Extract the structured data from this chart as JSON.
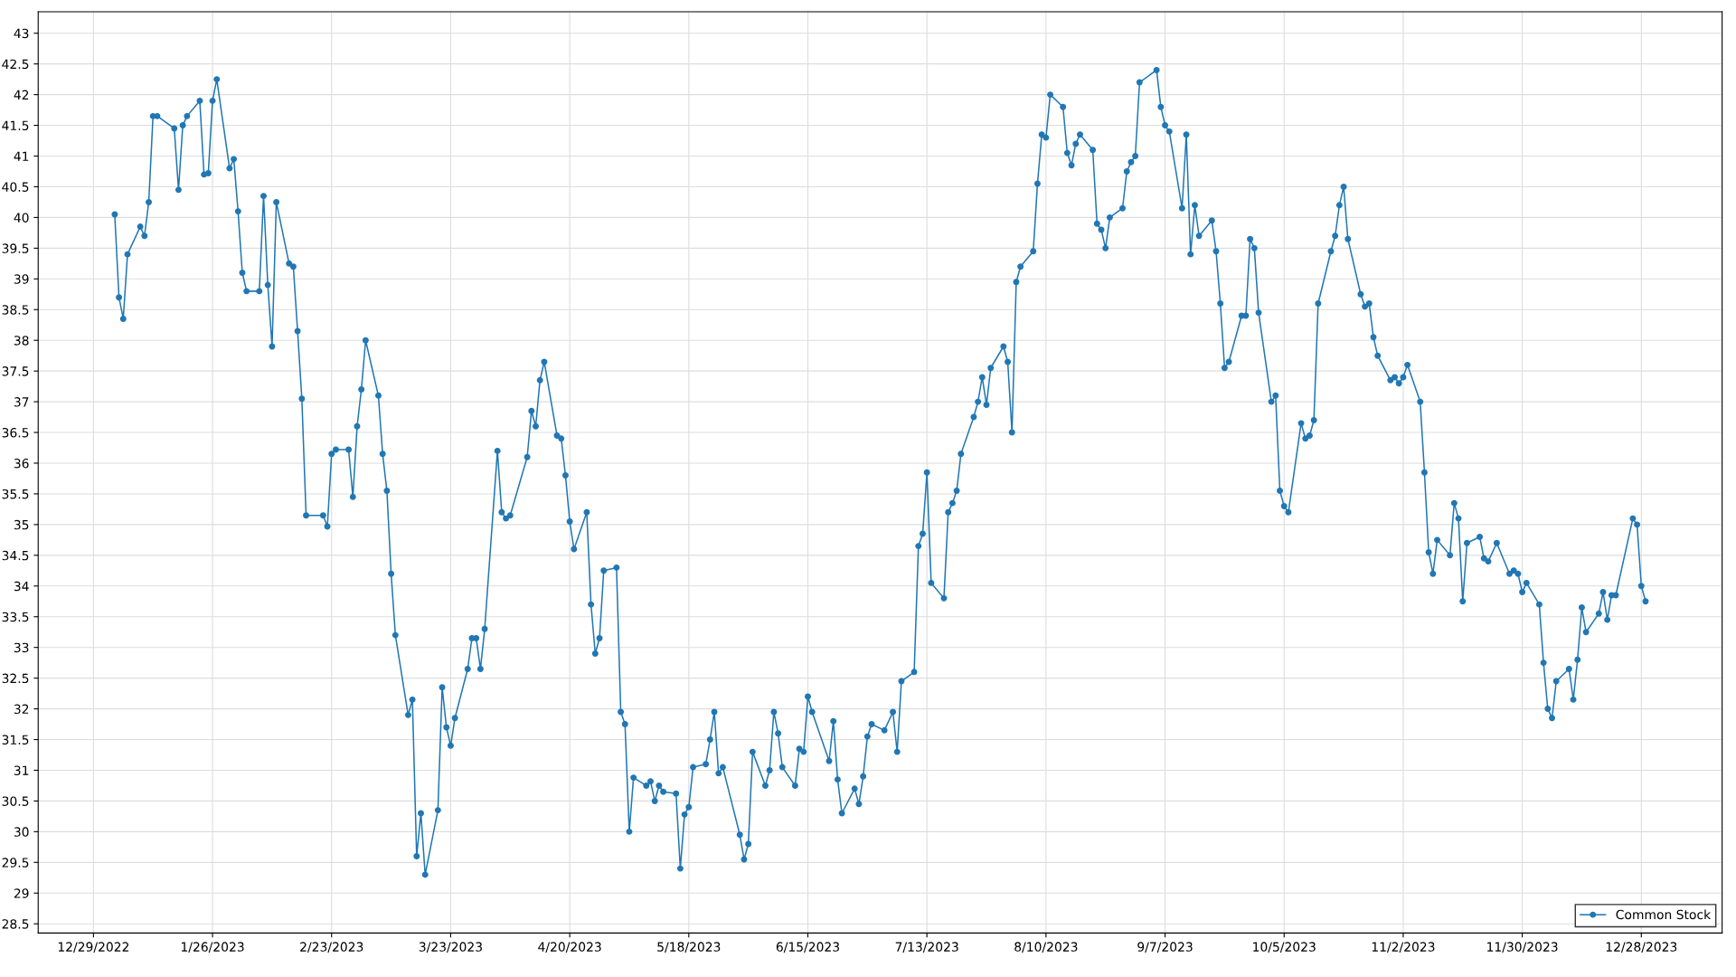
{
  "chart_data": {
    "type": "line",
    "x": [
      "2023-01-03",
      "2023-01-04",
      "2023-01-05",
      "2023-01-06",
      "2023-01-09",
      "2023-01-10",
      "2023-01-11",
      "2023-01-12",
      "2023-01-13",
      "2023-01-17",
      "2023-01-18",
      "2023-01-19",
      "2023-01-20",
      "2023-01-23",
      "2023-01-24",
      "2023-01-25",
      "2023-01-26",
      "2023-01-27",
      "2023-01-30",
      "2023-01-31",
      "2023-02-01",
      "2023-02-02",
      "2023-02-03",
      "2023-02-06",
      "2023-02-07",
      "2023-02-08",
      "2023-02-09",
      "2023-02-10",
      "2023-02-13",
      "2023-02-14",
      "2023-02-15",
      "2023-02-16",
      "2023-02-17",
      "2023-02-21",
      "2023-02-22",
      "2023-02-23",
      "2023-02-24",
      "2023-02-27",
      "2023-02-28",
      "2023-03-01",
      "2023-03-02",
      "2023-03-03",
      "2023-03-06",
      "2023-03-07",
      "2023-03-08",
      "2023-03-09",
      "2023-03-10",
      "2023-03-13",
      "2023-03-14",
      "2023-03-15",
      "2023-03-16",
      "2023-03-17",
      "2023-03-20",
      "2023-03-21",
      "2023-03-22",
      "2023-03-23",
      "2023-03-24",
      "2023-03-27",
      "2023-03-28",
      "2023-03-29",
      "2023-03-30",
      "2023-03-31",
      "2023-04-03",
      "2023-04-04",
      "2023-04-05",
      "2023-04-06",
      "2023-04-10",
      "2023-04-11",
      "2023-04-12",
      "2023-04-13",
      "2023-04-14",
      "2023-04-17",
      "2023-04-18",
      "2023-04-19",
      "2023-04-20",
      "2023-04-21",
      "2023-04-24",
      "2023-04-25",
      "2023-04-26",
      "2023-04-27",
      "2023-04-28",
      "2023-05-01",
      "2023-05-02",
      "2023-05-03",
      "2023-05-04",
      "2023-05-05",
      "2023-05-08",
      "2023-05-09",
      "2023-05-10",
      "2023-05-11",
      "2023-05-12",
      "2023-05-15",
      "2023-05-16",
      "2023-05-17",
      "2023-05-18",
      "2023-05-19",
      "2023-05-22",
      "2023-05-23",
      "2023-05-24",
      "2023-05-25",
      "2023-05-26",
      "2023-05-30",
      "2023-05-31",
      "2023-06-01",
      "2023-06-02",
      "2023-06-05",
      "2023-06-06",
      "2023-06-07",
      "2023-06-08",
      "2023-06-09",
      "2023-06-12",
      "2023-06-13",
      "2023-06-14",
      "2023-06-15",
      "2023-06-16",
      "2023-06-20",
      "2023-06-21",
      "2023-06-22",
      "2023-06-23",
      "2023-06-26",
      "2023-06-27",
      "2023-06-28",
      "2023-06-29",
      "2023-06-30",
      "2023-07-03",
      "2023-07-05",
      "2023-07-06",
      "2023-07-07",
      "2023-07-10",
      "2023-07-11",
      "2023-07-12",
      "2023-07-13",
      "2023-07-14",
      "2023-07-17",
      "2023-07-18",
      "2023-07-19",
      "2023-07-20",
      "2023-07-21",
      "2023-07-24",
      "2023-07-25",
      "2023-07-26",
      "2023-07-27",
      "2023-07-28",
      "2023-07-31",
      "2023-08-01",
      "2023-08-02",
      "2023-08-03",
      "2023-08-04",
      "2023-08-07",
      "2023-08-08",
      "2023-08-09",
      "2023-08-10",
      "2023-08-11",
      "2023-08-14",
      "2023-08-15",
      "2023-08-16",
      "2023-08-17",
      "2023-08-18",
      "2023-08-21",
      "2023-08-22",
      "2023-08-23",
      "2023-08-24",
      "2023-08-25",
      "2023-08-28",
      "2023-08-29",
      "2023-08-30",
      "2023-08-31",
      "2023-09-01",
      "2023-09-05",
      "2023-09-06",
      "2023-09-07",
      "2023-09-08",
      "2023-09-11",
      "2023-09-12",
      "2023-09-13",
      "2023-09-14",
      "2023-09-15",
      "2023-09-18",
      "2023-09-19",
      "2023-09-20",
      "2023-09-21",
      "2023-09-22",
      "2023-09-25",
      "2023-09-26",
      "2023-09-27",
      "2023-09-28",
      "2023-09-29",
      "2023-10-02",
      "2023-10-03",
      "2023-10-04",
      "2023-10-05",
      "2023-10-06",
      "2023-10-09",
      "2023-10-10",
      "2023-10-11",
      "2023-10-12",
      "2023-10-13",
      "2023-10-16",
      "2023-10-17",
      "2023-10-18",
      "2023-10-19",
      "2023-10-20",
      "2023-10-23",
      "2023-10-24",
      "2023-10-25",
      "2023-10-26",
      "2023-10-27",
      "2023-10-30",
      "2023-10-31",
      "2023-11-01",
      "2023-11-02",
      "2023-11-03",
      "2023-11-06",
      "2023-11-07",
      "2023-11-08",
      "2023-11-09",
      "2023-11-10",
      "2023-11-13",
      "2023-11-14",
      "2023-11-15",
      "2023-11-16",
      "2023-11-17",
      "2023-11-20",
      "2023-11-21",
      "2023-11-22",
      "2023-11-24",
      "2023-11-27",
      "2023-11-28",
      "2023-11-29",
      "2023-11-30",
      "2023-12-01",
      "2023-12-04",
      "2023-12-05",
      "2023-12-06",
      "2023-12-07",
      "2023-12-08",
      "2023-12-11",
      "2023-12-12",
      "2023-12-13",
      "2023-12-14",
      "2023-12-15",
      "2023-12-18",
      "2023-12-19",
      "2023-12-20",
      "2023-12-21",
      "2023-12-22",
      "2023-12-26",
      "2023-12-27",
      "2023-12-28",
      "2023-12-29"
    ],
    "series": [
      {
        "name": "Common Stock",
        "color": "#2077b4",
        "values": [
          40.05,
          38.7,
          38.35,
          39.4,
          39.85,
          39.7,
          40.25,
          41.65,
          41.65,
          41.45,
          40.45,
          41.5,
          41.65,
          41.9,
          40.7,
          40.72,
          41.9,
          42.25,
          40.8,
          40.95,
          40.1,
          39.1,
          38.8,
          38.8,
          40.35,
          38.9,
          37.9,
          40.25,
          39.25,
          39.2,
          38.15,
          37.05,
          35.15,
          35.15,
          34.97,
          36.15,
          36.22,
          36.22,
          35.45,
          36.6,
          37.2,
          38.0,
          37.1,
          36.15,
          35.55,
          34.2,
          33.2,
          31.9,
          32.15,
          29.6,
          30.3,
          29.3,
          30.35,
          32.35,
          31.7,
          31.4,
          31.85,
          32.65,
          33.15,
          33.15,
          32.65,
          33.3,
          36.2,
          35.2,
          35.1,
          35.15,
          36.1,
          36.85,
          36.6,
          37.35,
          37.65,
          36.45,
          36.4,
          35.8,
          35.05,
          34.6,
          35.2,
          33.7,
          32.9,
          33.15,
          34.25,
          34.3,
          31.95,
          31.75,
          30.0,
          30.88,
          30.75,
          30.82,
          30.5,
          30.75,
          30.65,
          30.62,
          29.4,
          30.28,
          30.4,
          31.05,
          31.1,
          31.5,
          31.95,
          30.95,
          31.05,
          29.95,
          29.55,
          29.8,
          31.3,
          30.75,
          31.0,
          31.95,
          31.6,
          31.05,
          30.75,
          31.35,
          31.3,
          32.2,
          31.95,
          31.15,
          31.8,
          30.85,
          30.3,
          30.7,
          30.45,
          30.9,
          31.55,
          31.75,
          31.65,
          31.95,
          31.3,
          32.45,
          32.6,
          34.65,
          34.85,
          35.85,
          34.05,
          33.8,
          35.2,
          35.35,
          35.55,
          36.15,
          36.75,
          37.0,
          37.4,
          36.95,
          37.55,
          37.9,
          37.65,
          36.5,
          38.95,
          39.2,
          39.45,
          40.55,
          41.35,
          41.3,
          42.0,
          41.8,
          41.05,
          40.85,
          41.2,
          41.35,
          41.1,
          39.9,
          39.8,
          39.5,
          40.0,
          40.15,
          40.75,
          40.9,
          41.0,
          42.2,
          42.4,
          41.8,
          41.5,
          41.4,
          40.15,
          41.35,
          39.4,
          40.2,
          39.7,
          39.95,
          39.45,
          38.6,
          37.55,
          37.65,
          38.4,
          38.4,
          39.65,
          39.5,
          38.45,
          37.0,
          37.1,
          35.55,
          35.3,
          35.2,
          36.65,
          36.4,
          36.45,
          36.7,
          38.6,
          39.45,
          39.7,
          40.2,
          40.5,
          39.65,
          38.75,
          38.55,
          38.6,
          38.05,
          37.75,
          37.35,
          37.4,
          37.3,
          37.4,
          37.6,
          37.0,
          35.85,
          34.55,
          34.2,
          34.75,
          34.5,
          35.35,
          35.1,
          33.75,
          34.7,
          34.8,
          34.45,
          34.4,
          34.7,
          34.2,
          34.25,
          34.2,
          33.9,
          34.05,
          33.7,
          32.75,
          32.0,
          31.85,
          32.45,
          32.65,
          32.15,
          32.8,
          33.65,
          33.25,
          33.55,
          33.9,
          33.45,
          33.85,
          33.85,
          35.1,
          35.0,
          34.0,
          33.75
        ]
      }
    ],
    "xlim": [
      "2022-12-16",
      "2024-01-16"
    ],
    "xticks": [
      {
        "value": "2022-12-29",
        "label": "12/29/2022"
      },
      {
        "value": "2023-01-26",
        "label": "1/26/2023"
      },
      {
        "value": "2023-02-23",
        "label": "2/23/2023"
      },
      {
        "value": "2023-03-23",
        "label": "3/23/2023"
      },
      {
        "value": "2023-04-20",
        "label": "4/20/2023"
      },
      {
        "value": "2023-05-18",
        "label": "5/18/2023"
      },
      {
        "value": "2023-06-15",
        "label": "6/15/2023"
      },
      {
        "value": "2023-07-13",
        "label": "7/13/2023"
      },
      {
        "value": "2023-08-10",
        "label": "8/10/2023"
      },
      {
        "value": "2023-09-07",
        "label": "9/7/2023"
      },
      {
        "value": "2023-10-05",
        "label": "10/5/2023"
      },
      {
        "value": "2023-11-02",
        "label": "11/2/2023"
      },
      {
        "value": "2023-11-30",
        "label": "11/30/2023"
      },
      {
        "value": "2023-12-28",
        "label": "12/28/2023"
      }
    ],
    "ylim": [
      28.35,
      43.35
    ],
    "yticks": [
      28.5,
      29,
      29.5,
      30,
      30.5,
      31,
      31.5,
      32,
      32.5,
      33,
      33.5,
      34,
      34.5,
      35,
      35.5,
      36,
      36.5,
      37,
      37.5,
      38,
      38.5,
      39,
      39.5,
      40,
      40.5,
      41,
      41.5,
      42,
      42.5,
      43
    ],
    "grid": true,
    "legend": "bottom right",
    "marker": "circle",
    "line_style": "solid"
  }
}
